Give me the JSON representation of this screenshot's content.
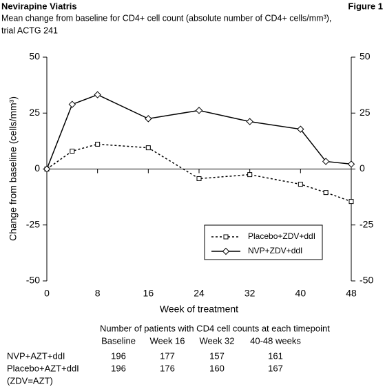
{
  "header": {
    "product": "Nevirapine Viatris",
    "figure": "Figure 1"
  },
  "chart_data": {
    "type": "line",
    "title": [
      "Mean change from baseline for CD4+ cell count (absolute number of CD4+ cells/mm³),",
      "trial ACTG 241"
    ],
    "x_label": "Week of treatment",
    "y_label": "Change from baseline (cells/mm³)",
    "x": [
      0,
      4,
      8,
      16,
      24,
      32,
      40,
      44,
      48
    ],
    "xlim": [
      0,
      48
    ],
    "xticks": [
      0,
      8,
      16,
      24,
      32,
      40,
      48
    ],
    "ylim": [
      -50,
      50
    ],
    "yticks": [
      50,
      25,
      0,
      -25,
      -50
    ],
    "y2lim": [
      -50,
      50
    ],
    "y2ticks": [
      50,
      25,
      0,
      -25,
      -50
    ],
    "legend": "lower-right",
    "series": [
      {
        "name": "Placebo+ZDV+ddI",
        "color": "#000000",
        "dash": true,
        "marker": "square",
        "values": [
          0,
          8.0,
          11.1,
          9.5,
          -4.3,
          -2.5,
          -6.8,
          -10.5,
          -14.5
        ]
      },
      {
        "name": "NVP+ZDV+ddI",
        "color": "#000000",
        "dash": false,
        "marker": "diamond",
        "values": [
          0,
          28.9,
          33.2,
          22.5,
          26.2,
          21.2,
          17.8,
          3.4,
          2.2
        ]
      }
    ]
  },
  "table": {
    "title": "Number of patients with CD4 cell counts at each timepoint",
    "columns": [
      "Baseline",
      "Week 16",
      "Week 32",
      "40-48 weeks"
    ],
    "rows": [
      {
        "label": "NVP+AZT+ddI",
        "values": [
          196,
          177,
          157,
          161
        ]
      },
      {
        "label": "Placebo+AZT+ddI",
        "values": [
          196,
          176,
          160,
          167
        ]
      }
    ],
    "note": "(ZDV=AZT)"
  }
}
